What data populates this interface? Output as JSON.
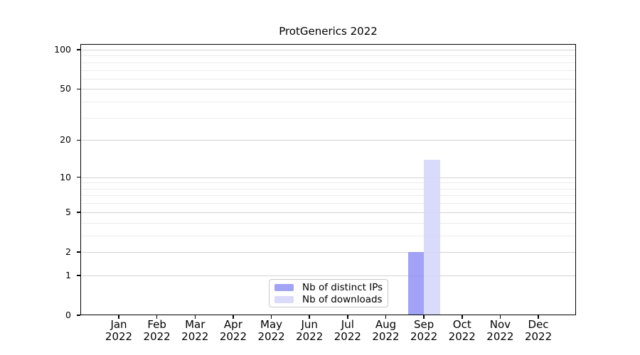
{
  "title": "ProtGenerics 2022",
  "chart_data": {
    "type": "bar",
    "title": "ProtGenerics 2022",
    "x_categories": [
      {
        "month": "Jan",
        "year": "2022"
      },
      {
        "month": "Feb",
        "year": "2022"
      },
      {
        "month": "Mar",
        "year": "2022"
      },
      {
        "month": "Apr",
        "year": "2022"
      },
      {
        "month": "May",
        "year": "2022"
      },
      {
        "month": "Jun",
        "year": "2022"
      },
      {
        "month": "Jul",
        "year": "2022"
      },
      {
        "month": "Aug",
        "year": "2022"
      },
      {
        "month": "Sep",
        "year": "2022"
      },
      {
        "month": "Oct",
        "year": "2022"
      },
      {
        "month": "Nov",
        "year": "2022"
      },
      {
        "month": "Dec",
        "year": "2022"
      }
    ],
    "series": [
      {
        "name": "Nb of distinct IPs",
        "color": "#9292f4",
        "alpha": 0.85,
        "values": [
          0,
          0,
          0,
          0,
          0,
          0,
          0,
          0,
          2,
          0,
          0,
          0
        ]
      },
      {
        "name": "Nb of downloads",
        "color": "#d5d5fa",
        "alpha": 0.88,
        "values": [
          0,
          0,
          0,
          0,
          0,
          0,
          0,
          0,
          14,
          0,
          0,
          0
        ]
      }
    ],
    "y_axis": {
      "scale": "log1p",
      "ticks": [
        0,
        1,
        2,
        5,
        10,
        20,
        50,
        100
      ],
      "minor_gridlines": [
        3,
        4,
        6,
        7,
        8,
        9,
        30,
        40,
        60,
        70,
        80,
        90
      ],
      "range": [
        0,
        110
      ]
    },
    "xlabel": "",
    "ylabel": "",
    "grid": "horizontal",
    "legend_position": "inside-bottom-center",
    "colors": {
      "axis": "#000000",
      "major_grid": "#d2d2d2",
      "minor_grid": "#ececec",
      "legend_border": "#c8c8c8",
      "background": "#ffffff",
      "text": "#000000"
    }
  }
}
